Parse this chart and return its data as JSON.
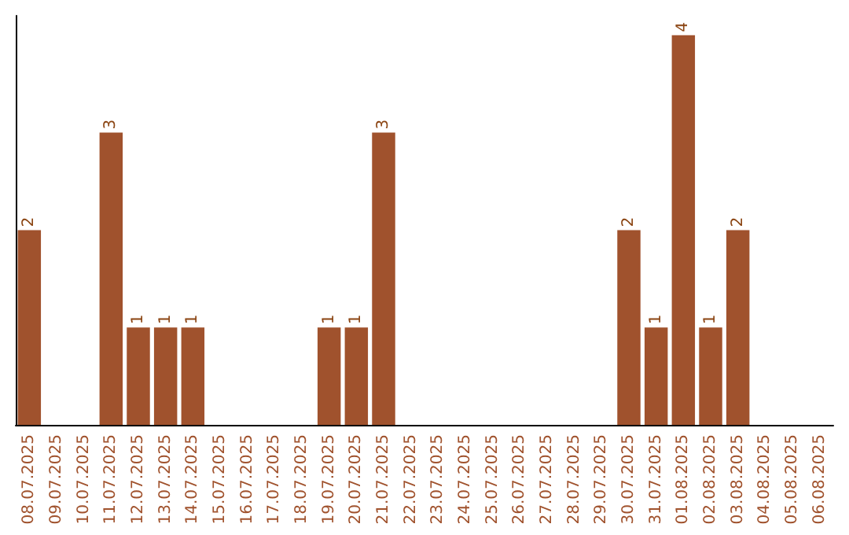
{
  "chart_data": {
    "type": "bar",
    "categories": [
      "08.07.2025",
      "09.07.2025",
      "10.07.2025",
      "11.07.2025",
      "12.07.2025",
      "13.07.2025",
      "14.07.2025",
      "15.07.2025",
      "16.07.2025",
      "17.07.2025",
      "18.07.2025",
      "19.07.2025",
      "20.07.2025",
      "21.07.2025",
      "22.07.2025",
      "23.07.2025",
      "24.07.2025",
      "25.07.2025",
      "26.07.2025",
      "27.07.2025",
      "28.07.2025",
      "29.07.2025",
      "30.07.2025",
      "31.07.2025",
      "01.08.2025",
      "02.08.2025",
      "03.08.2025",
      "04.08.2025",
      "05.08.2025",
      "06.08.2025"
    ],
    "values": [
      2,
      0,
      0,
      3,
      1,
      1,
      1,
      0,
      0,
      0,
      0,
      1,
      1,
      3,
      0,
      0,
      0,
      0,
      0,
      0,
      0,
      0,
      2,
      1,
      4,
      1,
      2,
      0,
      0,
      0
    ],
    "value_labels": [
      "2",
      null,
      null,
      "3",
      "1",
      "1",
      "1",
      null,
      null,
      null,
      null,
      "1",
      "1",
      "3",
      null,
      null,
      null,
      null,
      null,
      null,
      null,
      null,
      "2",
      "1",
      "4",
      "1",
      "2",
      null,
      null,
      null
    ],
    "color": "#a0522d",
    "ylim": [
      0,
      4.2
    ],
    "tick_labels": "x",
    "grid": false
  }
}
